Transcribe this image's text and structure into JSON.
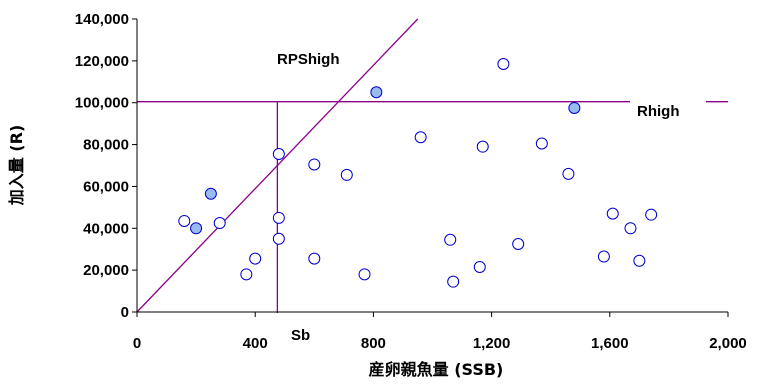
{
  "chart_data": {
    "type": "scatter",
    "xlabel": "産卵親魚量 (SSB)",
    "ylabel": "加入量 (R)",
    "xlim": [
      0,
      2000
    ],
    "ylim": [
      0,
      140000
    ],
    "x_ticks": [
      0,
      400,
      800,
      1200,
      1600,
      2000
    ],
    "y_ticks": [
      0,
      20000,
      40000,
      60000,
      80000,
      100000,
      120000,
      140000
    ],
    "x_tick_labels": [
      "0",
      "400",
      "800",
      "1,200",
      "1,600",
      "2,000"
    ],
    "y_tick_labels": [
      "0",
      "20,000",
      "40,000",
      "60,000",
      "80,000",
      "100,000",
      "120,000",
      "140,000"
    ],
    "grid": false,
    "colors": {
      "line": "#8B008B",
      "marker_edge": "#0000CC",
      "marker_fill_highlight": "#99BBEE",
      "marker_fill_normal": "#FFFFFF"
    },
    "series": [
      {
        "marker": "open-circle",
        "points": [
          [
            160,
            43500
          ],
          [
            280,
            42500
          ],
          [
            370,
            18000
          ],
          [
            400,
            25500
          ],
          [
            480,
            75500
          ],
          [
            480,
            45000
          ],
          [
            480,
            35000
          ],
          [
            600,
            70500
          ],
          [
            600,
            25500
          ],
          [
            710,
            65500
          ],
          [
            770,
            18000
          ],
          [
            960,
            83500
          ],
          [
            1060,
            34500
          ],
          [
            1070,
            14500
          ],
          [
            1160,
            21500
          ],
          [
            1170,
            79000
          ],
          [
            1240,
            118500
          ],
          [
            1290,
            32500
          ],
          [
            1370,
            80500
          ],
          [
            1460,
            66000
          ],
          [
            1580,
            26500
          ],
          [
            1610,
            47000
          ],
          [
            1670,
            40000
          ],
          [
            1700,
            24500
          ],
          [
            1740,
            46500
          ]
        ]
      },
      {
        "marker": "filled-circle",
        "points": [
          [
            200,
            40000
          ],
          [
            250,
            56500
          ],
          [
            810,
            105000
          ],
          [
            1480,
            97500
          ]
        ]
      }
    ],
    "reference_lines": {
      "rps_line": {
        "from": [
          0,
          0
        ],
        "to": [
          950,
          140000
        ]
      },
      "rhigh_level": 100500,
      "sb_value": 475
    },
    "annotations": {
      "rps": "RPShigh",
      "rhigh": "Rhigh",
      "sb": "Sb"
    }
  }
}
